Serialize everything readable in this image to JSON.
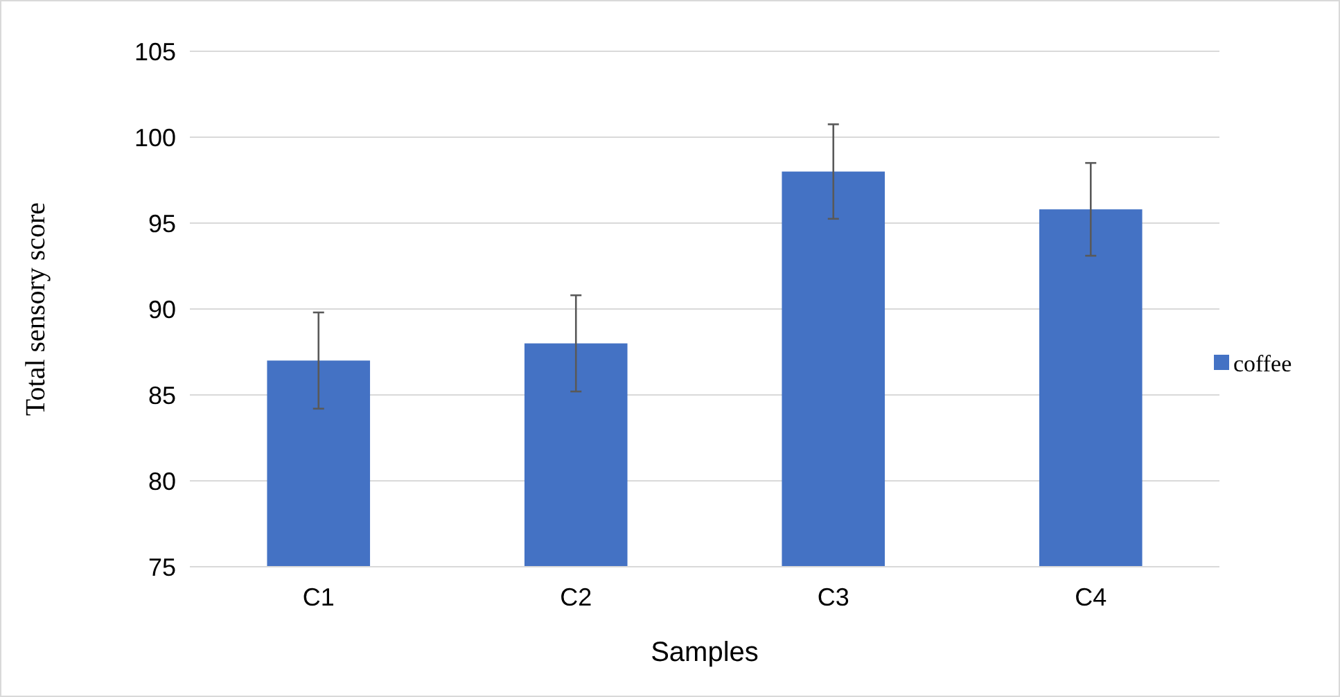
{
  "chart_data": {
    "type": "bar",
    "xlabel": "Samples",
    "ylabel": "Total sensory score",
    "categories": [
      "C1",
      "C2",
      "C3",
      "C4"
    ],
    "series": [
      {
        "name": "coffee",
        "color": "#4472c4",
        "values": [
          87,
          88,
          98,
          95.8
        ],
        "errors": [
          2.8,
          2.8,
          2.75,
          2.7
        ]
      }
    ],
    "ylim": [
      75,
      105
    ],
    "yticks": [
      75,
      80,
      85,
      90,
      95,
      100,
      105
    ],
    "grid": "y",
    "legend": "right"
  }
}
